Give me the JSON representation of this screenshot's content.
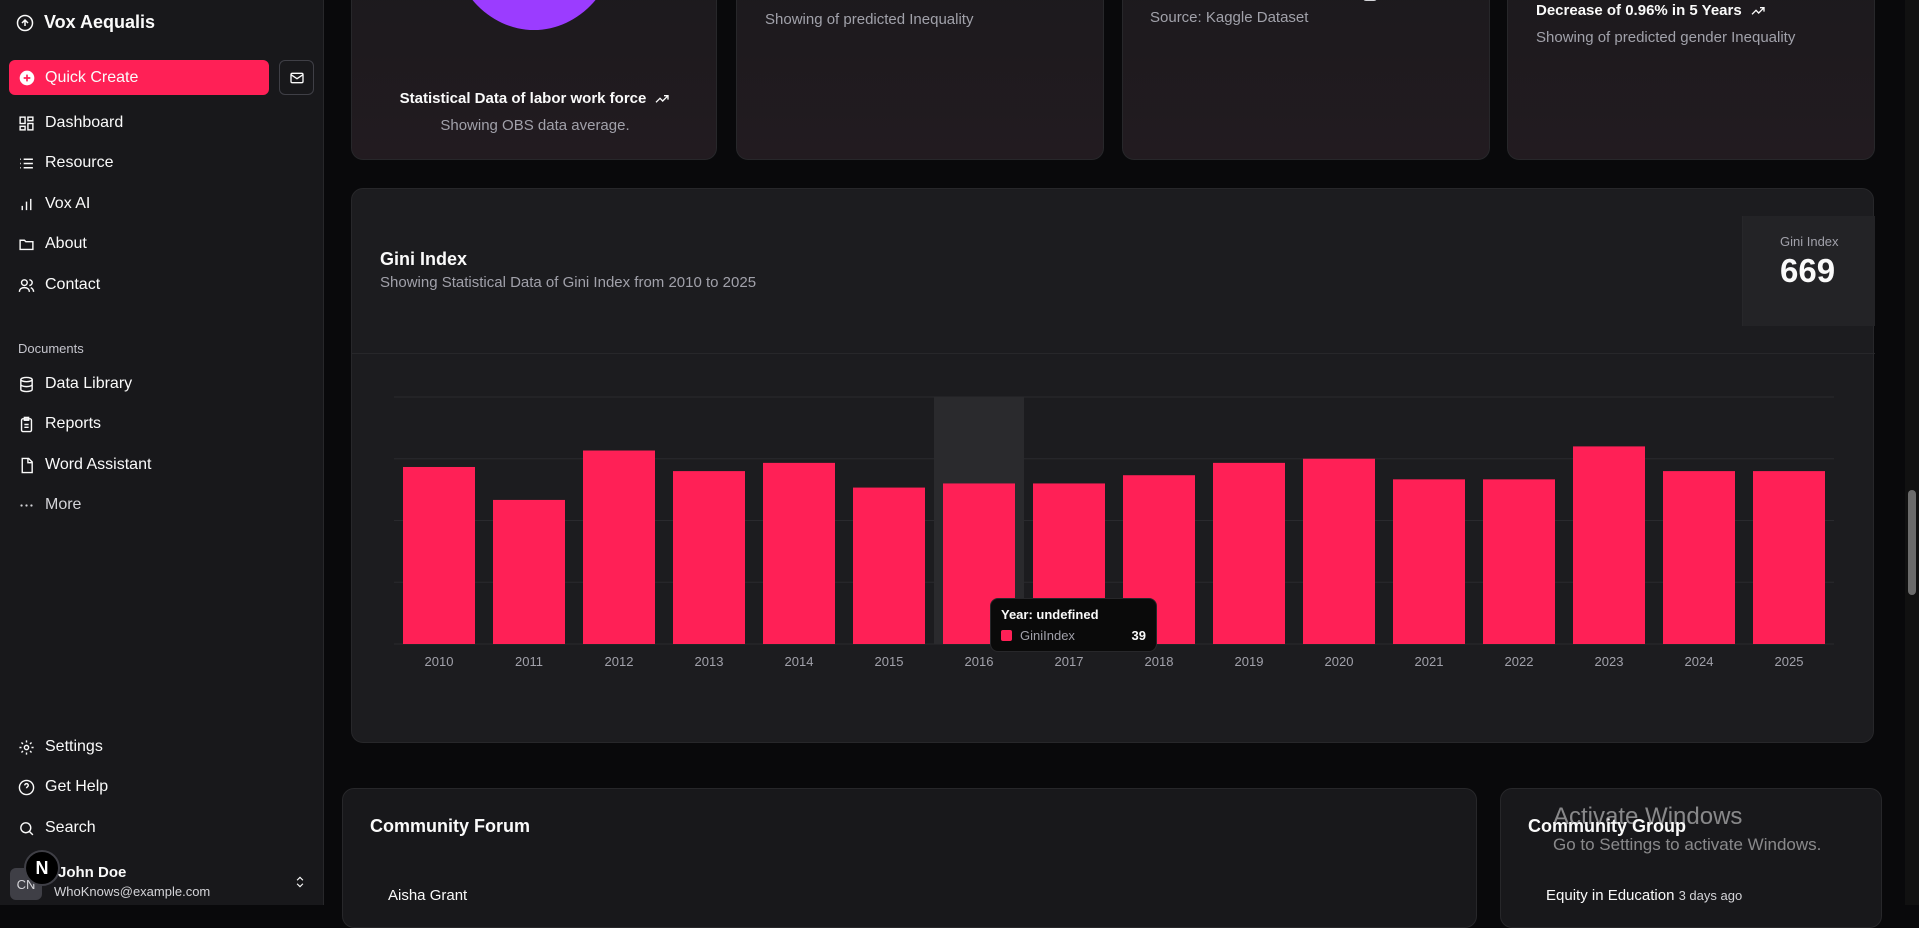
{
  "app": {
    "name": "Vox Aequalis"
  },
  "sidebar": {
    "quick_create": "Quick Create",
    "nav": [
      {
        "label": "Dashboard",
        "icon": "dashboard-icon"
      },
      {
        "label": "Resource",
        "icon": "list-icon"
      },
      {
        "label": "Vox AI",
        "icon": "chart-icon"
      },
      {
        "label": "About",
        "icon": "folder-icon"
      },
      {
        "label": "Contact",
        "icon": "users-icon"
      }
    ],
    "documents_label": "Documents",
    "documents": [
      {
        "label": "Data Library",
        "icon": "database-icon"
      },
      {
        "label": "Reports",
        "icon": "clipboard-icon"
      },
      {
        "label": "Word Assistant",
        "icon": "file-icon"
      }
    ],
    "more": "More",
    "bottom": [
      {
        "label": "Settings",
        "icon": "gear-icon"
      },
      {
        "label": "Get Help",
        "icon": "help-icon"
      },
      {
        "label": "Search",
        "icon": "search-icon"
      }
    ],
    "user": {
      "initials": "CN",
      "badge": "N",
      "name": "John Doe",
      "email": "WhoKnows@example.com"
    }
  },
  "top_cards": [
    {
      "title": "Statistical Data of labor work force",
      "subtitle": "Showing OBS data average."
    },
    {
      "subtitle": "Showing of predicted Inequality"
    },
    {
      "subtitle": "Source: Kaggle Dataset"
    },
    {
      "title": "Decrease of 0.96% in 5 Years",
      "subtitle": "Showing of predicted gender Inequality"
    }
  ],
  "gini": {
    "title": "Gini Index",
    "subtitle": "Showing Statistical Data of Gini Index from 2010 to 2025",
    "stat_label": "Gini Index",
    "stat_value": "669"
  },
  "chart_data": {
    "type": "bar",
    "categories": [
      "2010",
      "2011",
      "2012",
      "2013",
      "2014",
      "2015",
      "2016",
      "2017",
      "2018",
      "2019",
      "2020",
      "2021",
      "2022",
      "2023",
      "2024",
      "2025"
    ],
    "values": [
      43,
      35,
      47,
      42,
      44,
      38,
      39,
      39,
      41,
      44,
      45,
      40,
      40,
      48,
      42,
      42
    ],
    "ylim": [
      0,
      60
    ],
    "grid": true,
    "bar_color": "#ff2056",
    "highlighted_index": 6
  },
  "tooltip": {
    "title": "Year: undefined",
    "series": "GiniIndex",
    "value": "39"
  },
  "forum": {
    "title": "Community Forum",
    "first_item": "Aisha Grant"
  },
  "group": {
    "title": "Community Group",
    "first_item": "Equity in Education",
    "first_time": "3 days ago"
  },
  "watermark": {
    "line1": "Activate Windows",
    "line2": "Go to Settings to activate Windows."
  },
  "colors": {
    "accent": "#ff2056",
    "purple": "#9b3cff",
    "background": "#09090b"
  }
}
